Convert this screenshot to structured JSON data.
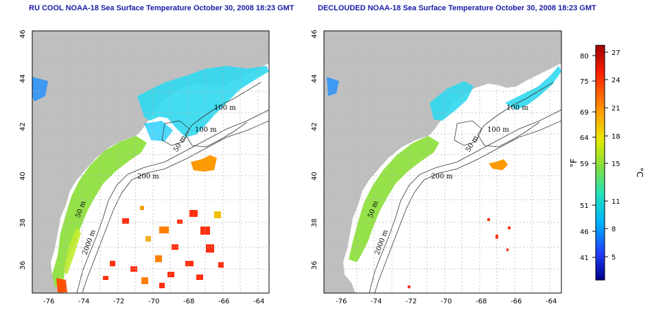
{
  "titles": {
    "left": "RU COOL NOAA-18 Sea Surface Temperature October 30, 2008 18:23 GMT",
    "right": "DECLOUDED NOAA-18 Sea Surface Temperature October 30, 2008 18:23 GMT"
  },
  "axes": {
    "lon_ticks": [
      "-76",
      "-74",
      "-72",
      "-70",
      "-68",
      "-66",
      "-64"
    ],
    "lat_ticks": [
      "36",
      "38",
      "40",
      "42",
      "44",
      "46"
    ]
  },
  "contour_labels": {
    "left": [
      "100 m",
      "100 m",
      "50 m",
      "200 m",
      "50 m",
      "2000 m"
    ],
    "right": [
      "100 m",
      "100 m",
      "50 m",
      "200 m",
      "50 m",
      "2000 m"
    ]
  },
  "colorbar": {
    "unit_f": "°F",
    "unit_c": "°C",
    "f_ticks": [
      "80",
      "75",
      "69",
      "64",
      "59",
      "51",
      "46",
      "41"
    ],
    "c_ticks": [
      "27",
      "24",
      "21",
      "18",
      "15",
      "11",
      "8",
      "5"
    ]
  },
  "colors": {
    "land": "#bfbfbf",
    "title": "#1a1aa8",
    "grid": "#b0b0b0"
  }
}
